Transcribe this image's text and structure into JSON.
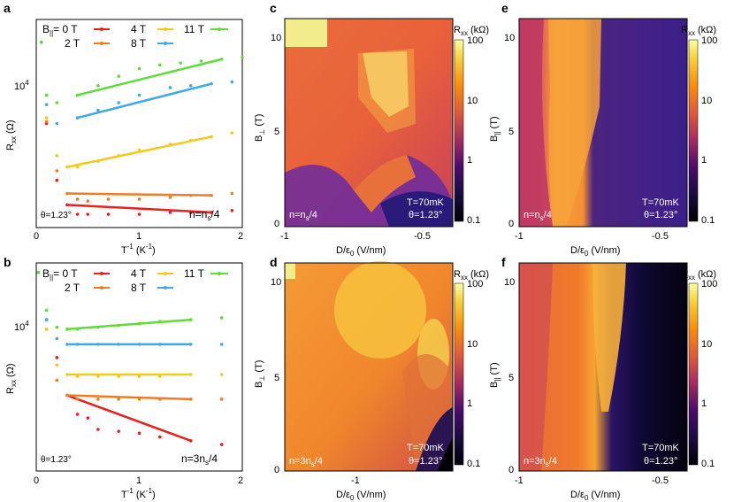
{
  "panels": {
    "a": {
      "label": "a",
      "ylabel_main": "R",
      "ylabel_sub": "xx",
      "ylabel_unit": " (Ω)",
      "ytick_base": "10",
      "ytick_exp": "4",
      "xlabel_main": "T",
      "xlabel_exp": "-1",
      "xlabel_unit": " (K",
      "xlabel_unit_exp": "-1",
      "xlabel_close": ")",
      "xticks": [
        "0",
        "1",
        "2"
      ],
      "angle": "θ=1.23°",
      "density": "n=n",
      "density_sub": "s",
      "density_tail": "/4"
    },
    "b": {
      "label": "b",
      "ylabel_main": "R",
      "ylabel_sub": "xx",
      "ylabel_unit": " (Ω)",
      "ytick_base": "10",
      "ytick_exp": "4",
      "xlabel_main": "T",
      "xlabel_exp": "-1",
      "xlabel_unit": " (K",
      "xlabel_unit_exp": "-1",
      "xlabel_close": ")",
      "xticks": [
        "0",
        "1",
        "2"
      ],
      "angle": "θ=1.23°",
      "density": "n=3n",
      "density_sub": "s",
      "density_tail": "/4"
    },
    "c": {
      "label": "c",
      "ylabel": "B",
      "ylabel_sub": "⊥",
      "ylabel_unit": " (T)",
      "xlabel": "D/ε",
      "xlabel_sub": "0",
      "xlabel_unit": " (V/nm)",
      "yticks": [
        "0",
        "5",
        "10"
      ],
      "xticks": [
        "-1",
        "-0.5"
      ],
      "note_t": "T=70mK",
      "note_angle": "θ=1.23°",
      "density": "n=n",
      "density_sub": "s",
      "density_tail": "/4"
    },
    "d": {
      "label": "d",
      "ylabel": "B",
      "ylabel_sub": "⊥",
      "ylabel_unit": " (T)",
      "xlabel": "D/ε",
      "xlabel_sub": "0",
      "xlabel_unit": " (V/nm)",
      "yticks": [
        "0",
        "5",
        "10"
      ],
      "xticks": [
        "-1"
      ],
      "note_t": "T=70mK",
      "note_angle": "θ=1.23°",
      "density": "n=3n",
      "density_sub": "s",
      "density_tail": "/4"
    },
    "e": {
      "label": "e",
      "ylabel": "B",
      "ylabel_sub": "||",
      "ylabel_unit": " (T)",
      "xlabel": "D/ε",
      "xlabel_sub": "0",
      "xlabel_unit": " (V/nm)",
      "yticks": [
        "0",
        "5",
        "10"
      ],
      "xticks": [
        "-1",
        "-0.5"
      ],
      "note_t": "T=70mK",
      "note_angle": "θ=1.23°",
      "density": "n=n",
      "density_sub": "s",
      "density_tail": "/4"
    },
    "f": {
      "label": "f",
      "ylabel": "B",
      "ylabel_sub": "||",
      "ylabel_unit": " (T)",
      "xlabel": "D/ε",
      "xlabel_sub": "0",
      "xlabel_unit": " (V/nm)",
      "yticks": [
        "0",
        "5",
        "10"
      ],
      "xticks": [
        "-1",
        "-0.5"
      ],
      "note_t": "T=70mK",
      "note_angle": "θ=1.23°",
      "density": "n=3n",
      "density_sub": "s",
      "density_tail": "/4"
    }
  },
  "colorbar": {
    "title": "R",
    "title_sub": "xx",
    "title_unit": " (kΩ)",
    "ticks": [
      "100",
      "10",
      "1",
      "0.1"
    ]
  },
  "legend": {
    "prefix": "B",
    "prefix_sub": "||",
    "eq": "= 0 T",
    "items": [
      {
        "label": "0 T",
        "color": "#e8211f"
      },
      {
        "label": "2 T",
        "color": "#f47a22"
      },
      {
        "label": "4 T",
        "color": "#f5c918"
      },
      {
        "label": "8 T",
        "color": "#3fa9e8"
      },
      {
        "label": "11 T",
        "color": "#5fdc3a"
      }
    ]
  },
  "chart_data": [
    {
      "type": "scatter",
      "panel": "a",
      "xlabel": "T^-1 (K^-1)",
      "ylabel": "Rxx (Ω)",
      "xlim": [
        0,
        2
      ],
      "yscale": "log",
      "ylim_log10": [
        3.2,
        4.3
      ],
      "series": [
        {
          "name": "0 T",
          "x": [
            0.05,
            0.1,
            0.2,
            0.3,
            0.4,
            0.5,
            0.7,
            1.0,
            1.3,
            1.5,
            1.7,
            1.9
          ],
          "log10y": [
            4.18,
            3.75,
            3.45,
            3.32,
            3.27,
            3.27,
            3.27,
            3.27,
            3.28,
            3.28,
            3.28,
            3.29
          ]
        },
        {
          "name": "2 T",
          "x": [
            0.05,
            0.1,
            0.2,
            0.3,
            0.4,
            0.5,
            0.7,
            1.0,
            1.3,
            1.5,
            1.7,
            1.9
          ],
          "log10y": [
            4.18,
            3.76,
            3.5,
            3.38,
            3.35,
            3.34,
            3.35,
            3.35,
            3.36,
            3.37,
            3.37,
            3.38
          ]
        },
        {
          "name": "4 T",
          "x": [
            0.05,
            0.1,
            0.2,
            0.3,
            0.4,
            0.6,
            0.8,
            1.0,
            1.3,
            1.5,
            1.7,
            1.9
          ],
          "log10y": [
            4.18,
            3.78,
            3.58,
            3.52,
            3.52,
            3.55,
            3.58,
            3.61,
            3.64,
            3.66,
            3.68,
            3.7
          ]
        },
        {
          "name": "8 T",
          "x": [
            0.05,
            0.1,
            0.2,
            0.4,
            0.6,
            0.8,
            1.0,
            1.3,
            1.5,
            1.7,
            1.9
          ],
          "log10y": [
            4.18,
            3.85,
            3.75,
            3.78,
            3.82,
            3.86,
            3.9,
            3.94,
            3.95,
            3.96,
            3.97
          ]
        },
        {
          "name": "11 T",
          "x": [
            0.05,
            0.1,
            0.2,
            0.4,
            0.6,
            0.8,
            1.0,
            1.2,
            1.4,
            1.6,
            1.8,
            2.0
          ],
          "log10y": [
            4.18,
            3.9,
            3.86,
            3.9,
            3.95,
            4.0,
            4.04,
            4.06,
            4.07,
            4.08,
            4.09,
            4.1
          ]
        }
      ]
    },
    {
      "type": "scatter",
      "panel": "b",
      "xlabel": "T^-1 (K^-1)",
      "ylabel": "Rxx (Ω)",
      "xlim": [
        0,
        2
      ],
      "yscale": "log",
      "ylim_log10": [
        3.2,
        4.3
      ],
      "series": [
        {
          "name": "0 T",
          "x": [
            0.02,
            0.1,
            0.2,
            0.3,
            0.4,
            0.5,
            0.6,
            0.8,
            1.0,
            1.2,
            1.5,
            1.8
          ],
          "log10y": [
            4.25,
            4.0,
            3.8,
            3.6,
            3.5,
            3.48,
            3.42,
            3.41,
            3.4,
            3.38,
            3.36,
            3.34
          ]
        },
        {
          "name": "2 T",
          "x": [
            0.02,
            0.1,
            0.2,
            0.3,
            0.4,
            0.6,
            0.8,
            1.0,
            1.2,
            1.5,
            1.8
          ],
          "log10y": [
            4.25,
            3.95,
            3.68,
            3.6,
            3.58,
            3.58,
            3.58,
            3.58,
            3.58,
            3.58,
            3.58
          ]
        },
        {
          "name": "4 T",
          "x": [
            0.02,
            0.1,
            0.2,
            0.3,
            0.4,
            0.6,
            0.8,
            1.0,
            1.2,
            1.5,
            1.8
          ],
          "log10y": [
            4.25,
            3.95,
            3.76,
            3.71,
            3.7,
            3.7,
            3.7,
            3.7,
            3.7,
            3.71,
            3.71
          ]
        },
        {
          "name": "8 T",
          "x": [
            0.02,
            0.1,
            0.2,
            0.3,
            0.4,
            0.6,
            0.8,
            1.0,
            1.2,
            1.5,
            1.8
          ],
          "log10y": [
            4.25,
            4.0,
            3.9,
            3.87,
            3.87,
            3.87,
            3.87,
            3.87,
            3.87,
            3.87,
            3.87
          ]
        },
        {
          "name": "11 T",
          "x": [
            0.02,
            0.1,
            0.2,
            0.3,
            0.4,
            0.6,
            0.8,
            1.0,
            1.2,
            1.5,
            1.8
          ],
          "log10y": [
            4.25,
            4.05,
            3.96,
            3.95,
            3.95,
            3.96,
            3.97,
            3.98,
            3.99,
            4.0,
            4.01
          ]
        }
      ]
    }
  ]
}
